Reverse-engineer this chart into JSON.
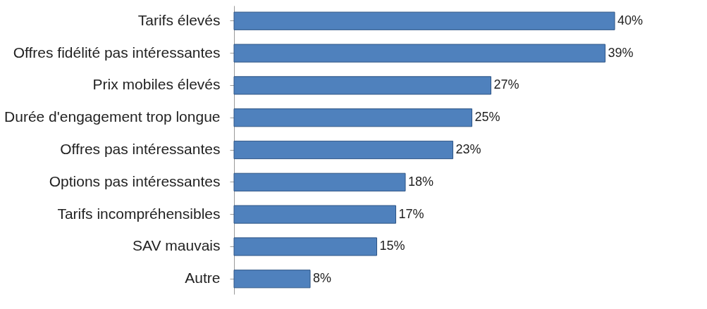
{
  "chart_data": {
    "type": "bar",
    "orientation": "horizontal",
    "categories": [
      "Tarifs élevés",
      "Offres fidélité pas intéressantes",
      "Prix mobiles élevés",
      "Durée d'engagement trop longue",
      "Offres pas intéressantes",
      "Options pas intéressantes",
      "Tarifs incompréhensibles",
      "SAV mauvais",
      "Autre"
    ],
    "values": [
      40,
      39,
      27,
      25,
      23,
      18,
      17,
      15,
      8
    ],
    "value_labels": [
      "40%",
      "39%",
      "27%",
      "25%",
      "23%",
      "18%",
      "17%",
      "15%",
      "8%"
    ],
    "color": "#4f81bd"
  }
}
